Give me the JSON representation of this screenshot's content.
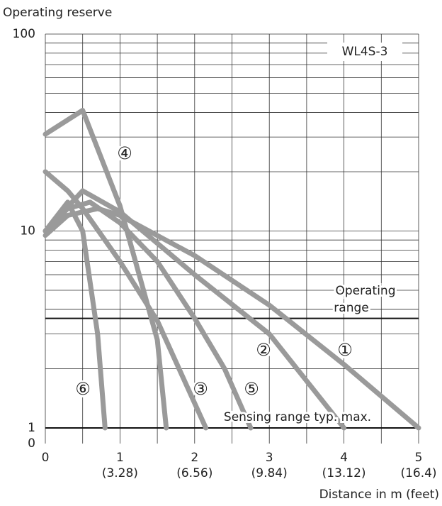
{
  "chart_data": {
    "type": "line",
    "title": "WL4S-3",
    "y_label": "Operating reserve",
    "x_label": "Distance in m (feet)",
    "y_log": true,
    "ylim": [
      1,
      100
    ],
    "yticks": [
      1,
      10,
      100
    ],
    "y_minor_ticks": [
      2,
      3,
      4,
      5,
      6,
      7,
      8,
      9,
      20,
      30,
      40,
      50,
      60,
      70,
      80,
      90
    ],
    "y_bottom_label": "0",
    "xlim": [
      0,
      5
    ],
    "xticks": [
      0,
      1,
      2,
      3,
      4,
      5
    ],
    "x_minor_ticks": [
      0.5,
      1.5,
      2.5,
      3.5,
      4.5
    ],
    "xticks_feet": [
      {
        "value": 1,
        "label": "(3.28)"
      },
      {
        "value": 2,
        "label": "(6.56)"
      },
      {
        "value": 3,
        "label": "(9.84)"
      },
      {
        "value": 4,
        "label": "(13.12)"
      },
      {
        "value": 5,
        "label": "(16.4)"
      }
    ],
    "grid": true,
    "reference_lines": [
      {
        "value": 3.6,
        "label_lines": [
          "Operating",
          "range"
        ]
      },
      {
        "value": 1,
        "label_lines": [
          "Sensing range typ. max."
        ]
      }
    ],
    "series": [
      {
        "name": "①",
        "color": "#9a9a9a",
        "x": [
          0,
          0.3,
          0.7,
          1,
          2,
          3,
          4,
          5
        ],
        "values": [
          9.5,
          12,
          13,
          12,
          7.5,
          4.2,
          2.1,
          1
        ]
      },
      {
        "name": "②",
        "color": "#9a9a9a",
        "x": [
          0,
          0.5,
          1,
          2,
          3,
          4
        ],
        "values": [
          10,
          16,
          12.5,
          6,
          3,
          1
        ]
      },
      {
        "name": "③",
        "color": "#9a9a9a",
        "x": [
          0,
          0.3,
          0.5,
          1,
          1.5,
          2.15
        ],
        "values": [
          20,
          16,
          13,
          7,
          3.5,
          1
        ]
      },
      {
        "name": "④",
        "color": "#9a9a9a",
        "x": [
          0,
          0.5,
          1,
          1.5,
          1.62
        ],
        "values": [
          31,
          41,
          13.4,
          2.8,
          1
        ]
      },
      {
        "name": "⑤",
        "color": "#9a9a9a",
        "x": [
          0,
          0.3,
          0.6,
          1,
          1.5,
          2,
          2.4,
          2.75
        ],
        "values": [
          10,
          13,
          14,
          11,
          7,
          3.6,
          2,
          1
        ]
      },
      {
        "name": "⑥",
        "color": "#9a9a9a",
        "x": [
          0,
          0.3,
          0.5,
          0.7,
          0.8
        ],
        "values": [
          10,
          14,
          10,
          3,
          1
        ]
      }
    ]
  }
}
